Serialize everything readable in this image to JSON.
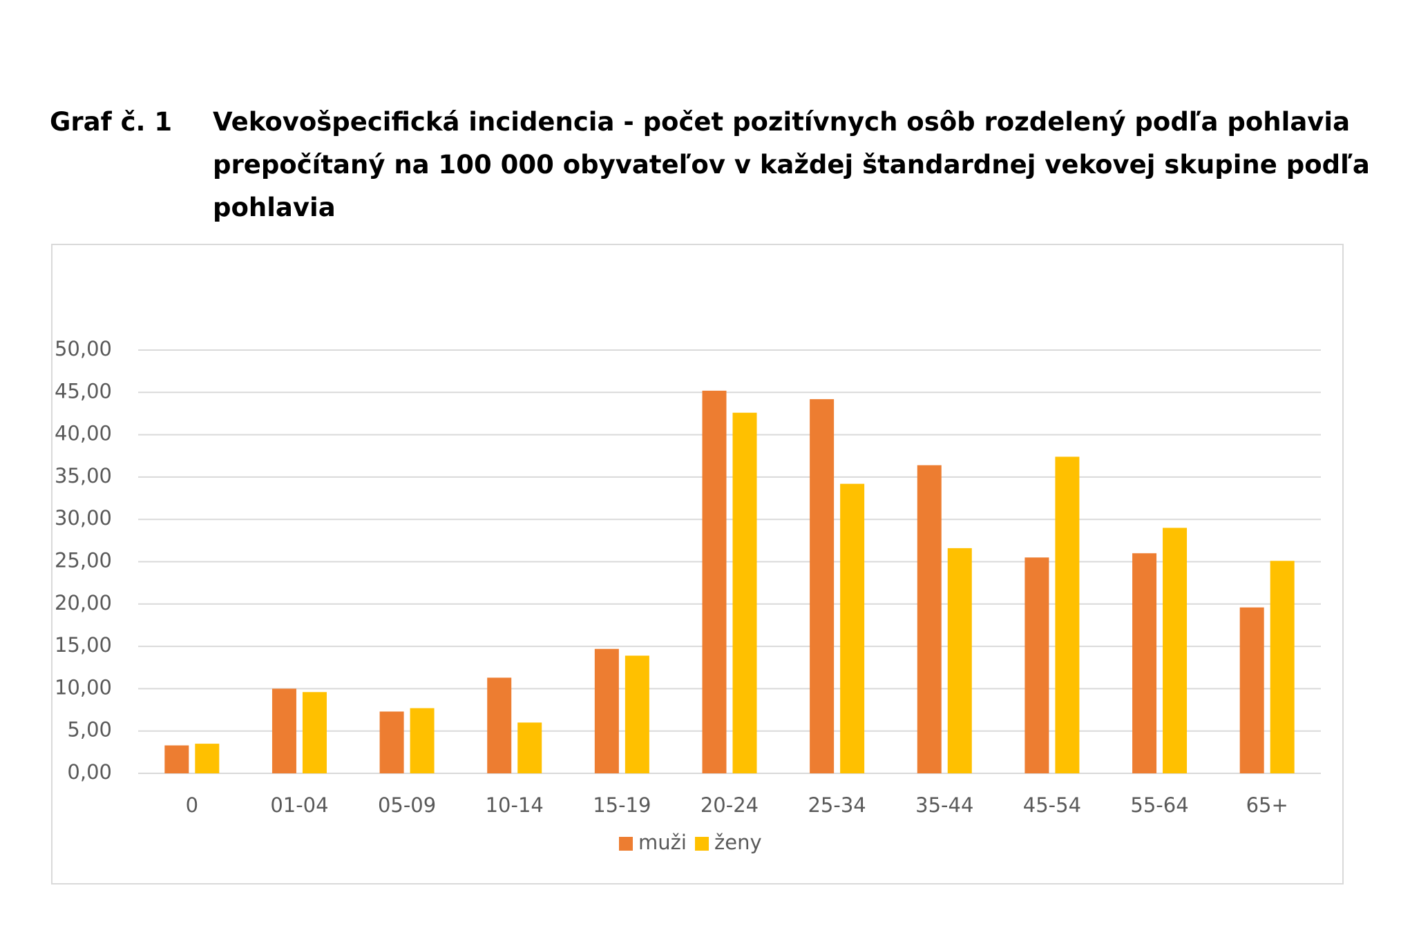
{
  "chart_data": {
    "type": "bar",
    "label": "Graf č. 1",
    "title": [
      "Vekovošpecifická incidencia - počet pozitívnych osôb rozdelený podľa pohlavia",
      "prepočítaný na 100 000 obyvateľov v každej štandardnej vekovej skupine podľa",
      "pohlavia"
    ],
    "categories": [
      "0",
      "01-04",
      "05-09",
      "10-14",
      "15-19",
      "20-24",
      "25-34",
      "35-44",
      "45-54",
      "55-64",
      "65+"
    ],
    "series": [
      {
        "name": "muži",
        "color": "#ed7d31",
        "values": [
          3.3,
          10.0,
          7.3,
          11.3,
          14.7,
          45.2,
          44.2,
          36.4,
          25.5,
          26.0,
          19.6
        ]
      },
      {
        "name": "ženy",
        "color": "#ffc000",
        "values": [
          3.5,
          9.6,
          7.7,
          6.0,
          13.9,
          42.6,
          34.2,
          26.6,
          37.4,
          29.0,
          25.1
        ]
      }
    ],
    "ylim": [
      0,
      50
    ],
    "yticks": [
      {
        "value": 0,
        "label": "0,00"
      },
      {
        "value": 5,
        "label": "5,00"
      },
      {
        "value": 10,
        "label": "10,00"
      },
      {
        "value": 15,
        "label": "15,00"
      },
      {
        "value": 20,
        "label": "20,00"
      },
      {
        "value": 25,
        "label": "25,00"
      },
      {
        "value": 30,
        "label": "30,00"
      },
      {
        "value": 35,
        "label": "35,00"
      },
      {
        "value": 40,
        "label": "40,00"
      },
      {
        "value": 45,
        "label": "45,00"
      },
      {
        "value": 50,
        "label": "50,00"
      }
    ],
    "grid": true,
    "legend": "bottom"
  }
}
